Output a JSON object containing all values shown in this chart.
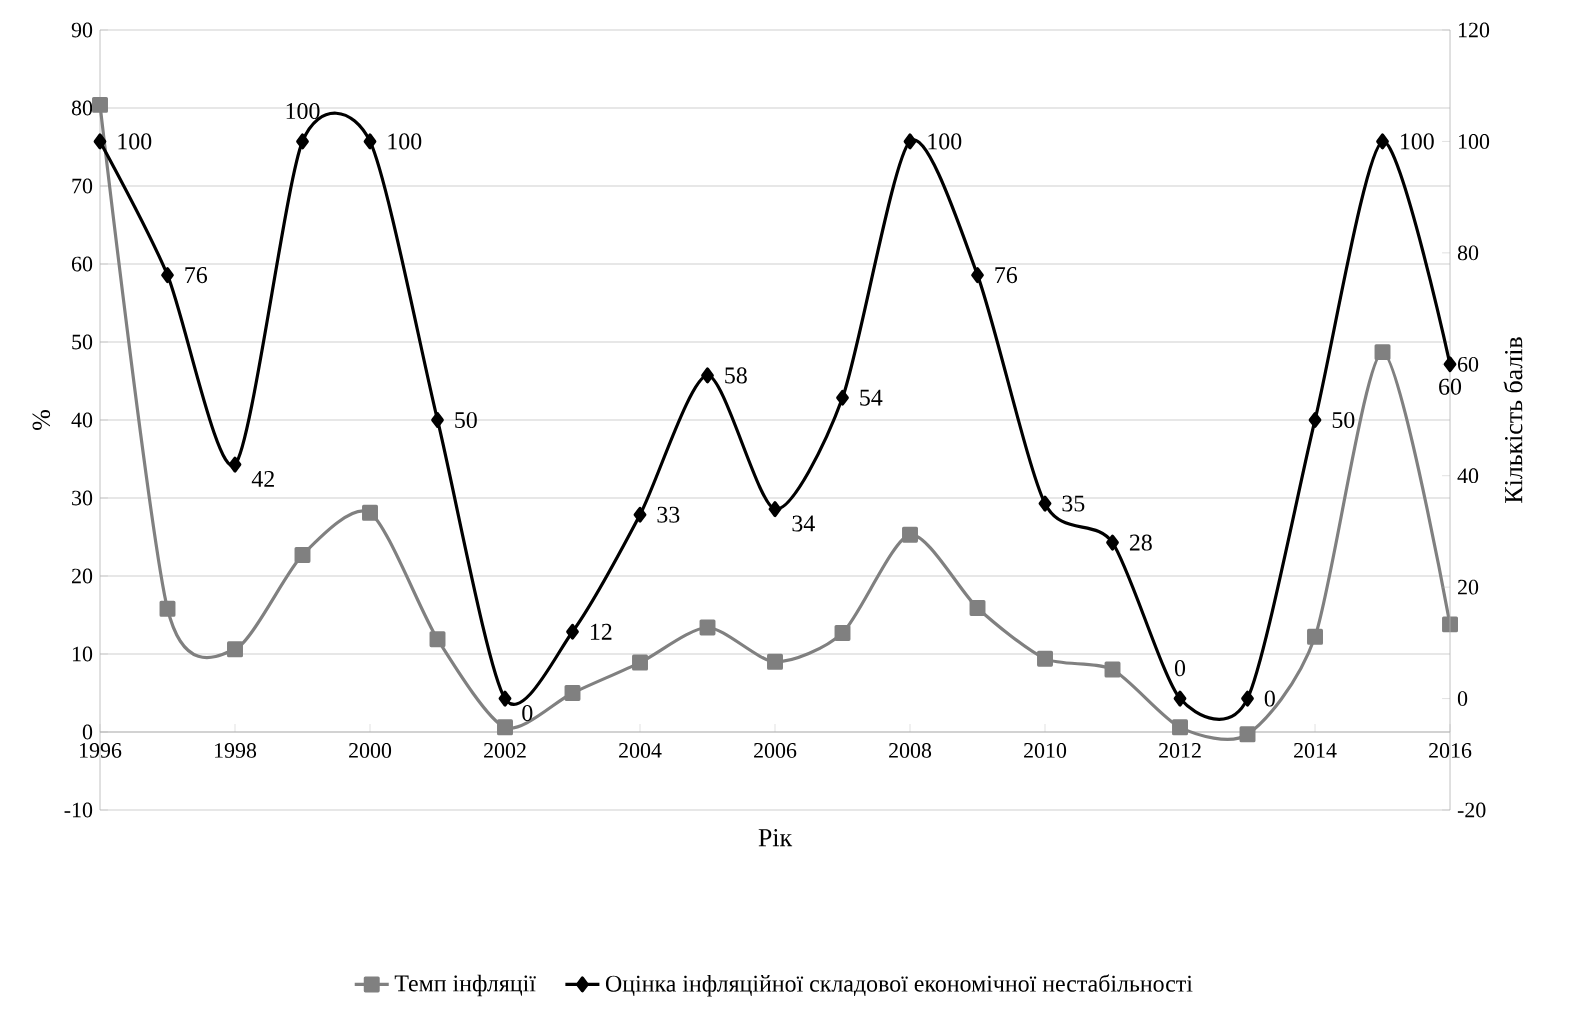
{
  "chart_data": {
    "type": "line",
    "xlabel": "Рік",
    "ylabel": "%",
    "y2label": "Кількість балів",
    "grid": "y",
    "legend": "bottom",
    "x": [
      1996,
      1997,
      1998,
      1999,
      2000,
      2001,
      2002,
      2003,
      2004,
      2005,
      2006,
      2007,
      2008,
      2009,
      2010,
      2011,
      2012,
      2013,
      2014,
      2015,
      2016
    ],
    "xlim": [
      1996,
      2016
    ],
    "xticks": [
      1996,
      1998,
      2000,
      2002,
      2004,
      2006,
      2008,
      2010,
      2012,
      2014,
      2016
    ],
    "ylim": [
      -10,
      90
    ],
    "yticks": [
      -10,
      0,
      10,
      20,
      30,
      40,
      50,
      60,
      70,
      80,
      90
    ],
    "y2lim": [
      -20,
      120
    ],
    "y2ticks": [
      -20,
      0,
      20,
      40,
      60,
      80,
      100,
      120
    ],
    "series": [
      {
        "name": "Темп інфляції",
        "color": "#808080",
        "marker": "square",
        "values": [
          80.4,
          15.8,
          10.6,
          22.7,
          28.1,
          11.9,
          0.6,
          5.0,
          8.9,
          13.4,
          9.0,
          12.7,
          25.3,
          15.9,
          9.4,
          8.0,
          0.6,
          -0.3,
          12.2,
          48.7,
          13.8
        ]
      },
      {
        "name": "Оцінка інфляційної складової економічної нестабільності",
        "color": "#000000",
        "marker": "diamond",
        "axis": "y2",
        "data_labels": true,
        "values": [
          100,
          76,
          42,
          100,
          100,
          50,
          0,
          12,
          33,
          58,
          34,
          54,
          100,
          76,
          35,
          28,
          0,
          0,
          50,
          100,
          60
        ]
      }
    ]
  }
}
